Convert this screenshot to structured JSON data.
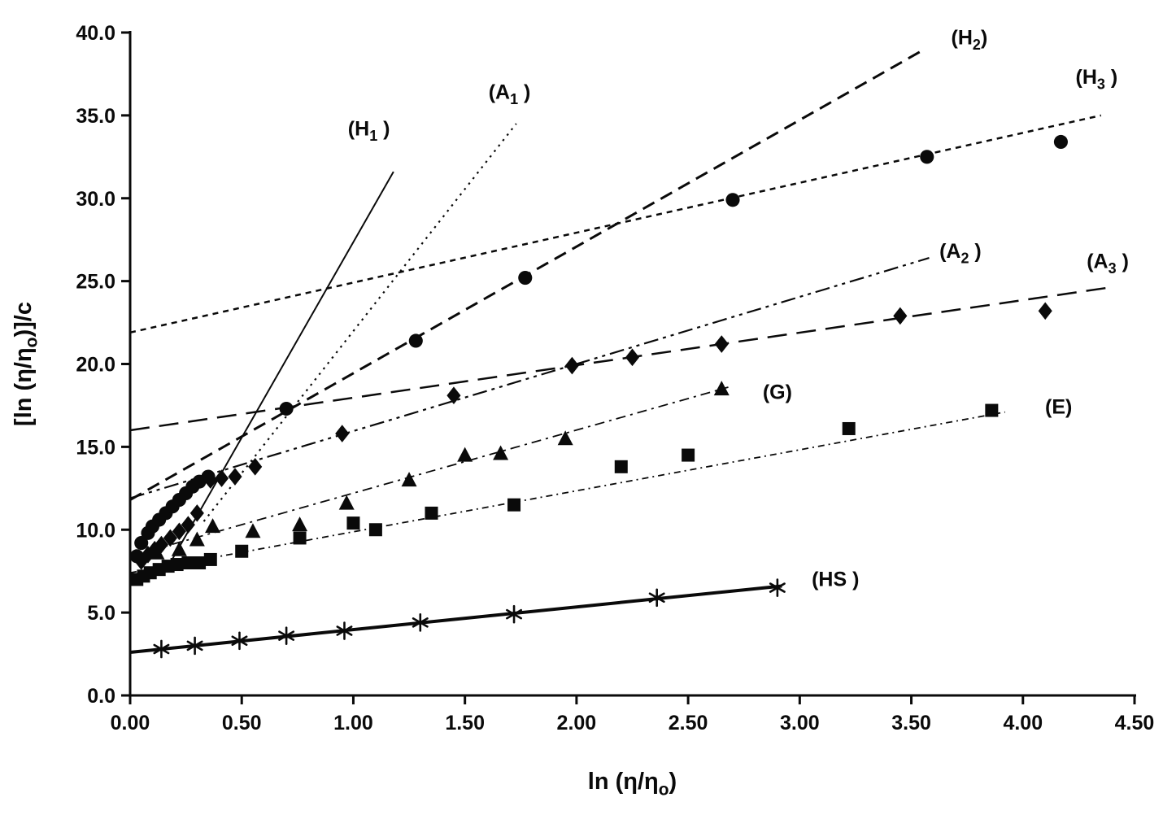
{
  "chart_data": {
    "type": "scatter",
    "title": "",
    "xlabel_parts": [
      {
        "t": "ln (η/η"
      },
      {
        "t": "o",
        "sub": true
      },
      {
        "t": ")"
      }
    ],
    "ylabel_parts": [
      {
        "t": "[ln (η/η"
      },
      {
        "t": "o",
        "sub": true
      },
      {
        "t": ")]/c"
      }
    ],
    "xlim": [
      0,
      4.5
    ],
    "ylim": [
      0,
      40
    ],
    "grid": false,
    "axis_color": "#0a0a0a",
    "marker_color": "#0a0a0a",
    "xticks": [
      {
        "v": 0.0,
        "label": "0.00"
      },
      {
        "v": 0.5,
        "label": "0.50"
      },
      {
        "v": 1.0,
        "label": "1.00"
      },
      {
        "v": 1.5,
        "label": "1.50"
      },
      {
        "v": 2.0,
        "label": "2.00"
      },
      {
        "v": 2.5,
        "label": "2.50"
      },
      {
        "v": 3.0,
        "label": "3.00"
      },
      {
        "v": 3.5,
        "label": "3.50"
      },
      {
        "v": 4.0,
        "label": "4.00"
      },
      {
        "v": 4.5,
        "label": "4.50"
      }
    ],
    "yticks": [
      {
        "v": 0,
        "label": "0.0"
      },
      {
        "v": 5,
        "label": "5.0"
      },
      {
        "v": 10,
        "label": "10.0"
      },
      {
        "v": 15,
        "label": "15.0"
      },
      {
        "v": 20,
        "label": "20.0"
      },
      {
        "v": 25,
        "label": "25.0"
      },
      {
        "v": 30,
        "label": "30.0"
      },
      {
        "v": 35,
        "label": "35.0"
      },
      {
        "v": 40,
        "label": "40.0"
      }
    ],
    "series": [
      {
        "id": "circles",
        "marker": "circle",
        "size": 9,
        "points": [
          [
            0.03,
            8.4
          ],
          [
            0.05,
            9.2
          ],
          [
            0.08,
            9.8
          ],
          [
            0.1,
            10.2
          ],
          [
            0.13,
            10.6
          ],
          [
            0.16,
            11.0
          ],
          [
            0.19,
            11.4
          ],
          [
            0.22,
            11.8
          ],
          [
            0.25,
            12.2
          ],
          [
            0.28,
            12.6
          ],
          [
            0.31,
            12.9
          ],
          [
            0.35,
            13.2
          ],
          [
            0.7,
            17.3
          ],
          [
            1.28,
            21.4
          ],
          [
            1.77,
            25.2
          ],
          [
            2.7,
            29.9
          ],
          [
            3.57,
            32.5
          ],
          [
            4.17,
            33.4
          ]
        ]
      },
      {
        "id": "diamonds",
        "marker": "diamond",
        "size": 9,
        "points": [
          [
            0.05,
            8.1
          ],
          [
            0.08,
            8.5
          ],
          [
            0.11,
            8.8
          ],
          [
            0.14,
            9.1
          ],
          [
            0.18,
            9.5
          ],
          [
            0.22,
            9.9
          ],
          [
            0.26,
            10.3
          ],
          [
            0.3,
            11.0
          ],
          [
            0.36,
            13.0
          ],
          [
            0.41,
            13.1
          ],
          [
            0.47,
            13.2
          ],
          [
            0.56,
            13.8
          ],
          [
            0.95,
            15.8
          ],
          [
            1.45,
            18.1
          ],
          [
            1.98,
            19.9
          ],
          [
            2.25,
            20.4
          ],
          [
            2.65,
            21.2
          ],
          [
            3.45,
            22.9
          ],
          [
            4.1,
            23.2
          ]
        ]
      },
      {
        "id": "triangles",
        "marker": "triangle",
        "size": 10,
        "points": [
          [
            0.12,
            8.6
          ],
          [
            0.22,
            8.8
          ],
          [
            0.3,
            9.4
          ],
          [
            0.37,
            10.2
          ],
          [
            0.55,
            9.9
          ],
          [
            0.76,
            10.3
          ],
          [
            0.97,
            11.6
          ],
          [
            1.25,
            13.0
          ],
          [
            1.5,
            14.5
          ],
          [
            1.66,
            14.6
          ],
          [
            1.95,
            15.5
          ],
          [
            2.65,
            18.5
          ]
        ]
      },
      {
        "id": "squares",
        "marker": "square",
        "size": 8,
        "points": [
          [
            0.03,
            7.0
          ],
          [
            0.06,
            7.2
          ],
          [
            0.09,
            7.4
          ],
          [
            0.13,
            7.6
          ],
          [
            0.17,
            7.8
          ],
          [
            0.21,
            7.9
          ],
          [
            0.26,
            8.0
          ],
          [
            0.31,
            8.0
          ],
          [
            0.36,
            8.2
          ],
          [
            0.5,
            8.7
          ],
          [
            0.76,
            9.5
          ],
          [
            1.0,
            10.4
          ],
          [
            1.1,
            10.0
          ],
          [
            1.35,
            11.0
          ],
          [
            1.72,
            11.5
          ],
          [
            2.2,
            13.8
          ],
          [
            2.5,
            14.5
          ],
          [
            3.22,
            16.1
          ],
          [
            3.86,
            17.2
          ]
        ]
      },
      {
        "id": "asterisks",
        "marker": "asterisk",
        "size": 10,
        "points": [
          [
            0.14,
            2.8
          ],
          [
            0.29,
            3.0
          ],
          [
            0.49,
            3.3
          ],
          [
            0.7,
            3.6
          ],
          [
            0.96,
            3.9
          ],
          [
            1.3,
            4.4
          ],
          [
            1.72,
            4.9
          ],
          [
            2.36,
            5.9
          ],
          [
            2.9,
            6.5
          ]
        ]
      }
    ],
    "lines": [
      {
        "id": "H1",
        "x1": 0.15,
        "y1": 7.3,
        "x2": 1.18,
        "y2": 31.6,
        "dash": "",
        "width": 2,
        "label_parts": [
          {
            "t": "(H"
          },
          {
            "t": "1",
            "sub": true
          },
          {
            "t": " )"
          }
        ],
        "label_x": 1.07,
        "label_y": 33.8
      },
      {
        "id": "A1",
        "x1": 0.33,
        "y1": 10.5,
        "x2": 1.73,
        "y2": 34.5,
        "dash": "2.5 6",
        "width": 2.2,
        "label_parts": [
          {
            "t": "(A"
          },
          {
            "t": "1",
            "sub": true
          },
          {
            "t": " )"
          }
        ],
        "label_x": 1.7,
        "label_y": 36.0
      },
      {
        "id": "H2",
        "x1": 0.0,
        "y1": 11.8,
        "x2": 3.56,
        "y2": 39.0,
        "dash": "16 9",
        "width": 3,
        "label_parts": [
          {
            "t": "(H"
          },
          {
            "t": "2",
            "sub": true
          },
          {
            "t": ")"
          }
        ],
        "label_x": 3.76,
        "label_y": 39.3
      },
      {
        "id": "H3",
        "x1": 0.0,
        "y1": 21.9,
        "x2": 4.35,
        "y2": 35.0,
        "dash": "7 6",
        "width": 2.5,
        "label_parts": [
          {
            "t": "(H"
          },
          {
            "t": "3",
            "sub": true
          },
          {
            "t": " )"
          }
        ],
        "label_x": 4.33,
        "label_y": 36.9
      },
      {
        "id": "A2",
        "x1": 0.0,
        "y1": 11.9,
        "x2": 3.58,
        "y2": 26.4,
        "dash": "18 6 4 6 4 6",
        "width": 2.2,
        "label_parts": [
          {
            "t": "(A"
          },
          {
            "t": "2",
            "sub": true
          },
          {
            "t": " )"
          }
        ],
        "label_x": 3.72,
        "label_y": 26.4
      },
      {
        "id": "A3",
        "x1": 0.0,
        "y1": 16.0,
        "x2": 4.38,
        "y2": 24.6,
        "dash": "24 12",
        "width": 2.5,
        "label_parts": [
          {
            "t": "(A"
          },
          {
            "t": "3",
            "sub": true
          },
          {
            "t": " )"
          }
        ],
        "label_x": 4.38,
        "label_y": 25.8
      },
      {
        "id": "G",
        "x1": 0.0,
        "y1": 8.4,
        "x2": 2.68,
        "y2": 18.6,
        "dash": "12 6 3 6",
        "width": 1.8,
        "label_parts": [
          {
            "t": "(G)"
          }
        ],
        "label_x": 2.9,
        "label_y": 17.9
      },
      {
        "id": "E",
        "x1": 0.0,
        "y1": 7.4,
        "x2": 3.92,
        "y2": 17.1,
        "dash": "8 5 2 5",
        "width": 1.8,
        "label_parts": [
          {
            "t": "(E)"
          }
        ],
        "label_x": 4.16,
        "label_y": 17.0
      },
      {
        "id": "HS",
        "x1": 0.0,
        "y1": 2.6,
        "x2": 2.92,
        "y2": 6.6,
        "dash": "",
        "width": 4,
        "label_parts": [
          {
            "t": "(HS )"
          }
        ],
        "label_x": 3.16,
        "label_y": 6.6
      }
    ]
  }
}
